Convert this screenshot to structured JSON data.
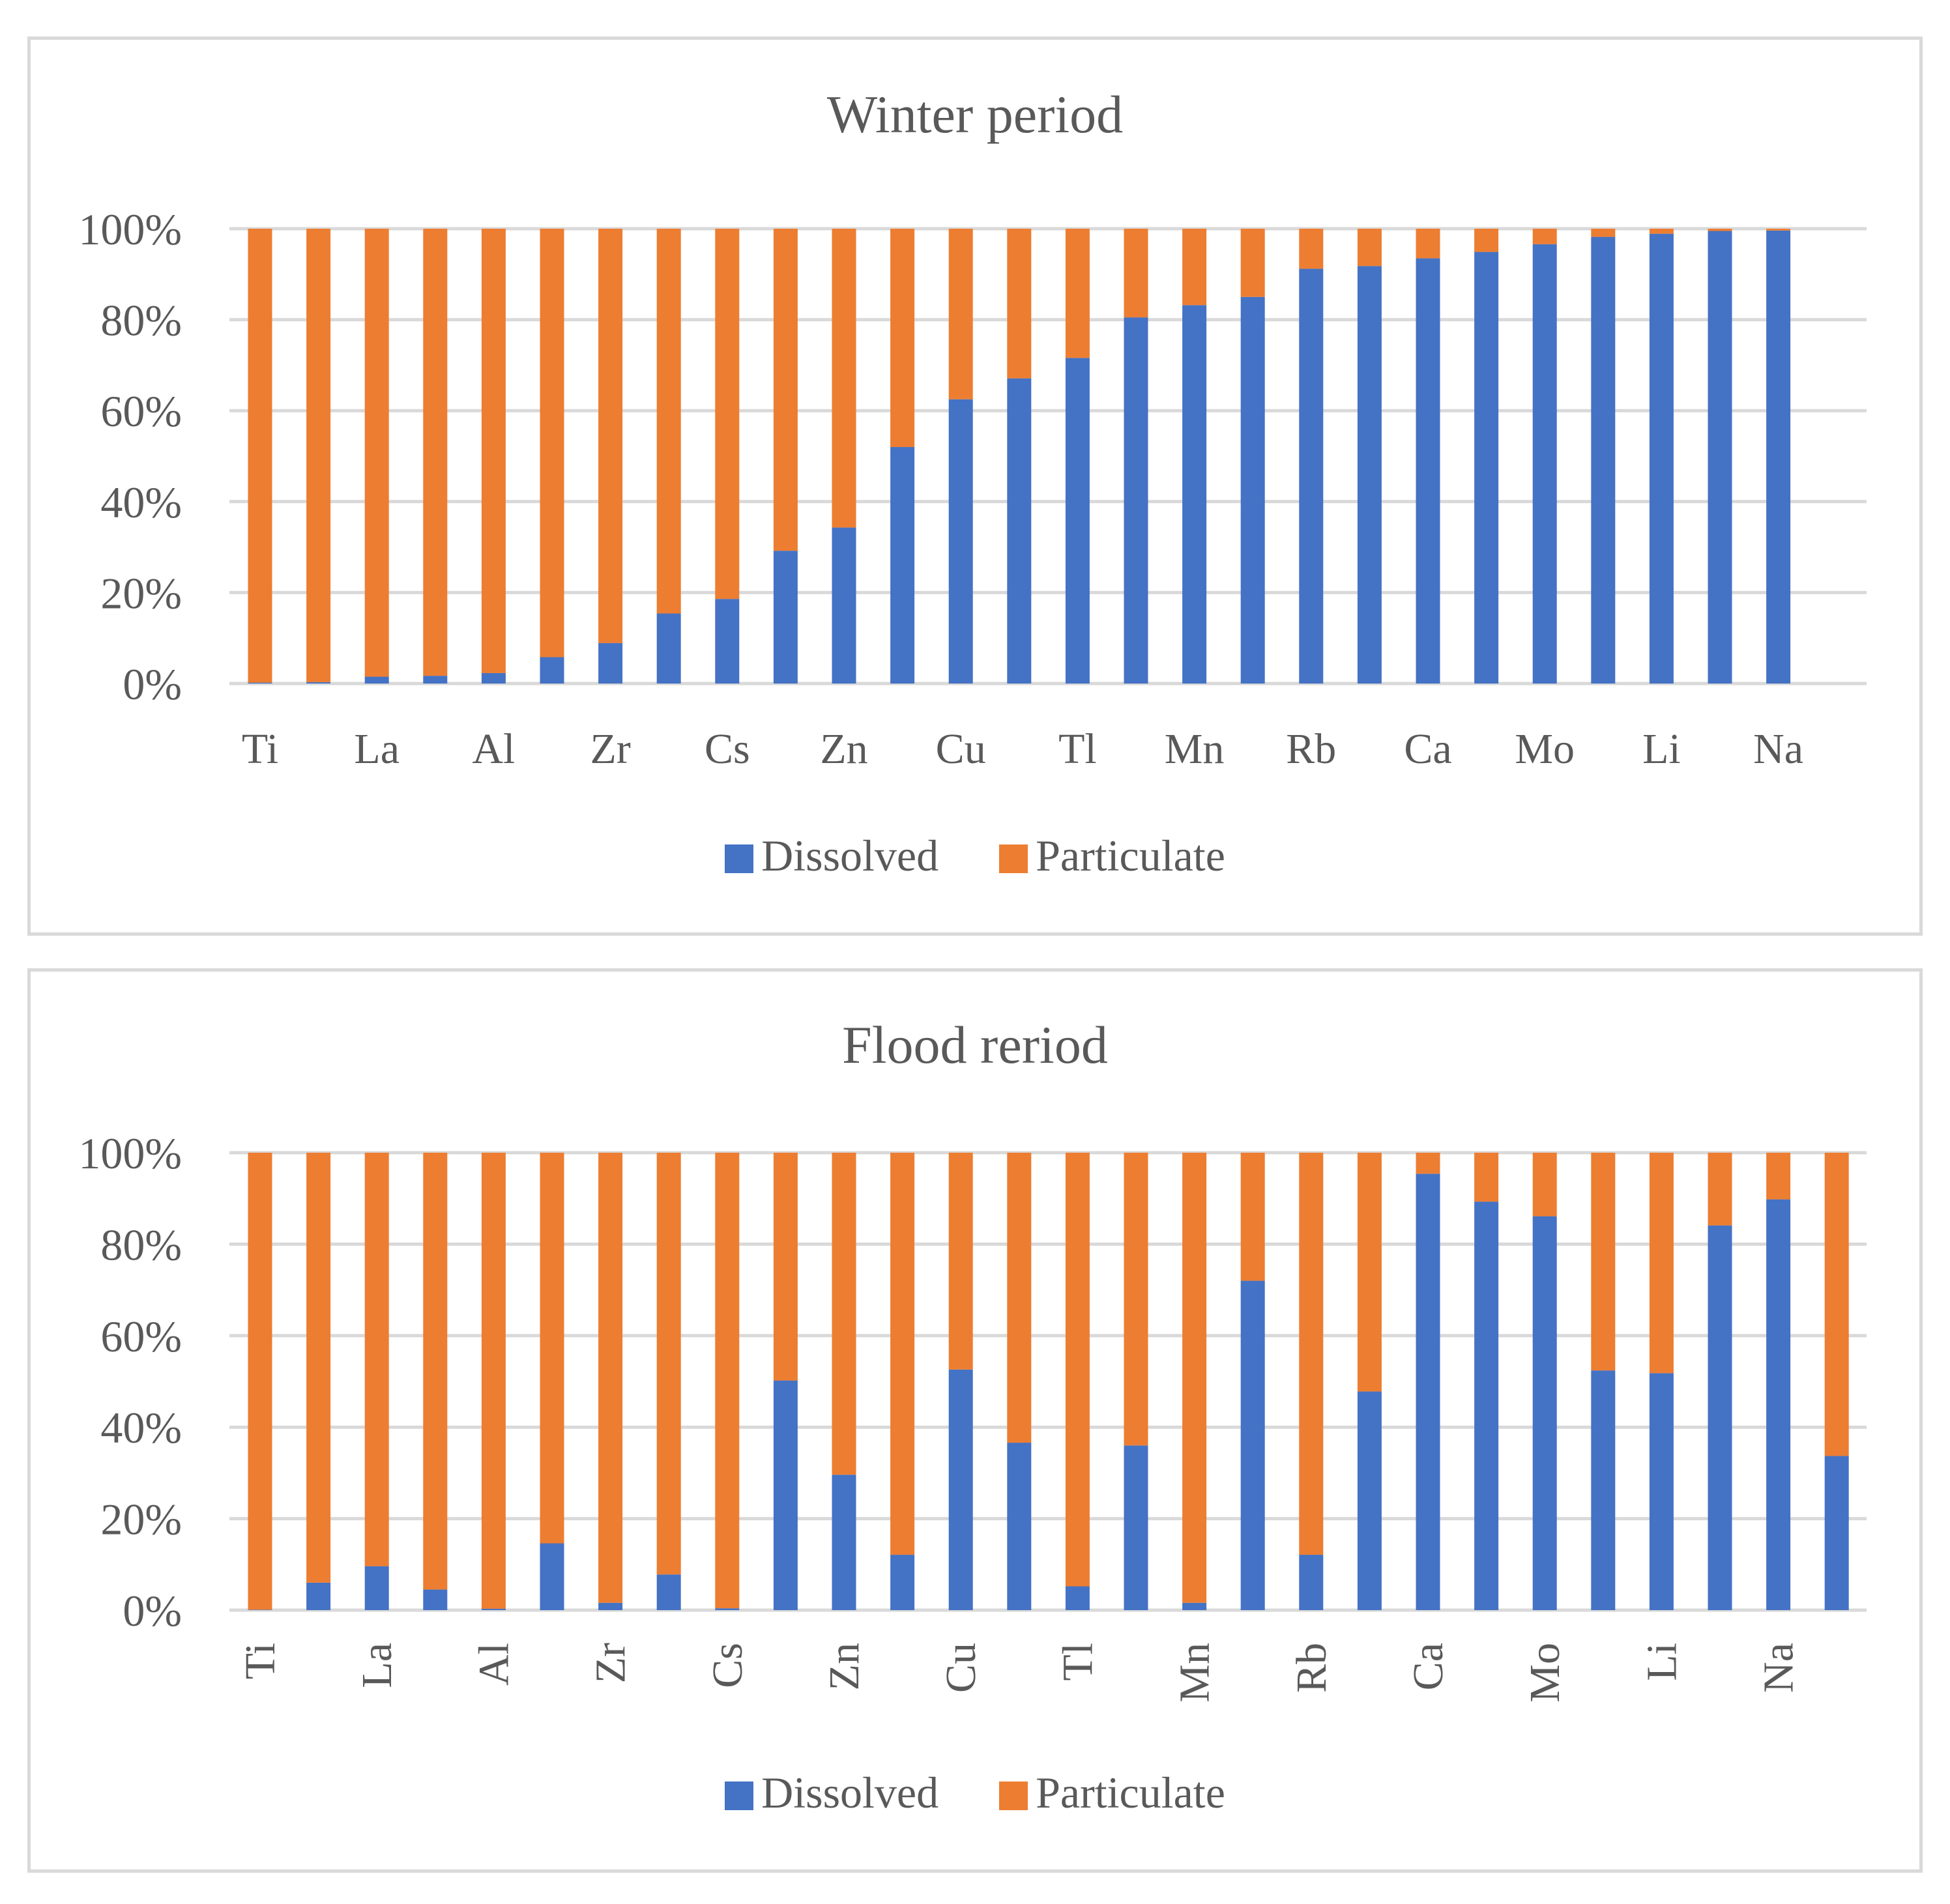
{
  "colors": {
    "dissolved": "#4472C4",
    "particulate": "#ED7D31",
    "grid": "#d9d9d9",
    "text": "#595959"
  },
  "legend": {
    "dissolved": "Dissolved",
    "particulate": "Particulate"
  },
  "chart_data": [
    {
      "type": "bar",
      "stacked": "percent",
      "title": "Winter period",
      "ylim": [
        0,
        100
      ],
      "yticks": [
        "0%",
        "20%",
        "40%",
        "60%",
        "80%",
        "100%"
      ],
      "categories": [
        "Ti",
        "",
        "La",
        "",
        "Al",
        "",
        "Zr",
        "",
        "Cs",
        "",
        "Zn",
        "",
        "Cu",
        "",
        "Tl",
        "",
        "Mn",
        "",
        "Rb",
        "",
        "Ca",
        "",
        "Mo",
        "",
        "Li",
        "",
        "Na"
      ],
      "series": [
        {
          "name": "Dissolved",
          "values": [
            0.2,
            0.3,
            1.5,
            1.7,
            2.3,
            5.8,
            8.9,
            15.4,
            18.6,
            29.2,
            34.3,
            52.0,
            62.5,
            67.1,
            71.6,
            80.5,
            83.2,
            85.0,
            91.2,
            91.8,
            93.5,
            94.9,
            96.6,
            98.2,
            98.9,
            99.5,
            99.6
          ]
        },
        {
          "name": "Particulate",
          "values": [
            99.8,
            99.7,
            98.5,
            98.3,
            97.7,
            94.2,
            91.1,
            84.6,
            81.4,
            70.8,
            65.7,
            48.0,
            37.5,
            32.9,
            28.4,
            19.5,
            16.8,
            15.0,
            8.8,
            8.2,
            6.5,
            5.1,
            3.4,
            1.8,
            1.1,
            0.5,
            0.4
          ]
        }
      ],
      "legend_position": "bottom"
    },
    {
      "type": "bar",
      "stacked": "percent",
      "title": "Flood reriod",
      "ylim": [
        0,
        100
      ],
      "yticks": [
        "0%",
        "20%",
        "40%",
        "60%",
        "80%",
        "100%"
      ],
      "categories": [
        "Ti",
        "",
        "La",
        "",
        "Al",
        "",
        "Zr",
        "",
        "Cs",
        "",
        "Zn",
        "",
        "Cu",
        "",
        "Tl",
        "",
        "Mn",
        "",
        "Rb",
        "",
        "Ca",
        "",
        "Mo",
        "",
        "Li",
        "",
        "Na",
        ""
      ],
      "series": [
        {
          "name": "Dissolved",
          "values": [
            0.1,
            6.0,
            9.6,
            4.5,
            0.3,
            14.6,
            1.6,
            7.8,
            0.4,
            50.2,
            29.6,
            12.1,
            52.6,
            36.6,
            5.2,
            36.0,
            1.6,
            72.0,
            12.1,
            47.8,
            95.4,
            89.3,
            86.1,
            52.4,
            51.8,
            84.1,
            89.8,
            33.7
          ]
        },
        {
          "name": "Particulate",
          "values": [
            99.9,
            94.0,
            90.4,
            95.5,
            99.7,
            85.4,
            98.4,
            92.2,
            99.6,
            49.8,
            70.4,
            87.9,
            47.4,
            63.4,
            94.8,
            64.0,
            98.4,
            28.0,
            87.9,
            52.2,
            4.6,
            10.7,
            13.9,
            47.6,
            48.2,
            15.9,
            10.2,
            66.3
          ]
        }
      ],
      "legend_position": "bottom"
    }
  ]
}
